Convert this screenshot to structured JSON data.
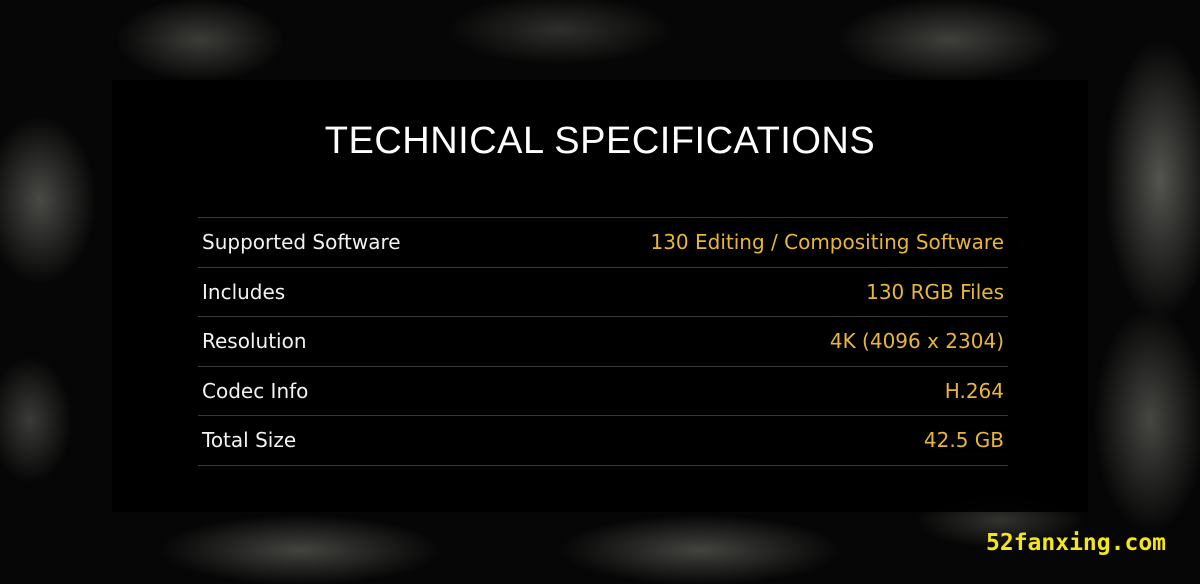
{
  "title": "TECHNICAL SPECIFICATIONS",
  "specs": [
    {
      "label": "Supported Software",
      "value": "130 Editing / Compositing Software"
    },
    {
      "label": "Includes",
      "value": "130 RGB Files"
    },
    {
      "label": "Resolution",
      "value": "4K (4096 x 2304)"
    },
    {
      "label": "Codec Info",
      "value": "H.264"
    },
    {
      "label": "Total Size",
      "value": "42.5 GB"
    }
  ],
  "watermark": "52fanxing.com",
  "colors": {
    "value": "#e8b73a",
    "watermark": "#f5e61a"
  }
}
